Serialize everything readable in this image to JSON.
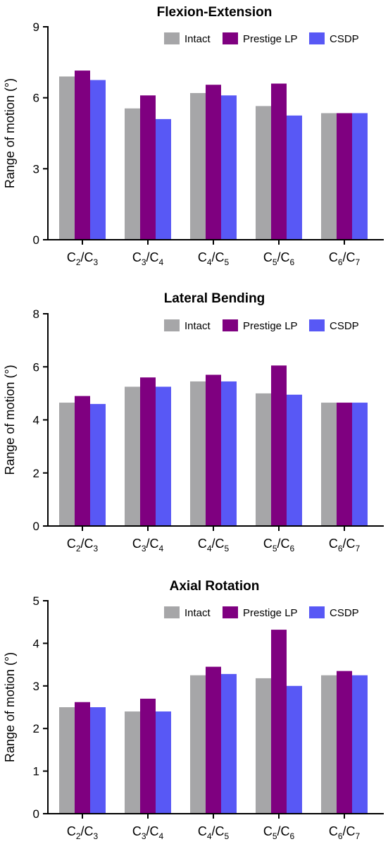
{
  "chart_data": [
    {
      "type": "bar",
      "title": "Flexion-Extension",
      "ylabel": "Range of motion (°)",
      "xlabel": "",
      "ylim": [
        0,
        9
      ],
      "yticks": [
        0,
        3,
        6,
        9
      ],
      "legend_position": "top-right",
      "categories": [
        {
          "base": "C",
          "sub1": "2",
          "sep": "/C",
          "sub2": "3"
        },
        {
          "base": "C",
          "sub1": "3",
          "sep": "/C",
          "sub2": "4"
        },
        {
          "base": "C",
          "sub1": "4",
          "sep": "/C",
          "sub2": "5"
        },
        {
          "base": "C",
          "sub1": "5",
          "sep": "/C",
          "sub2": "6"
        },
        {
          "base": "C",
          "sub1": "6",
          "sep": "/C",
          "sub2": "7"
        }
      ],
      "series": [
        {
          "name": "Intact",
          "color": "#a6a6a8",
          "values": [
            6.9,
            5.55,
            6.2,
            5.65,
            5.35
          ]
        },
        {
          "name": "Prestige LP",
          "color": "#7f0080",
          "values": [
            7.15,
            6.1,
            6.55,
            6.6,
            5.35
          ]
        },
        {
          "name": "CSDP",
          "color": "#5858f5",
          "values": [
            6.75,
            5.1,
            6.1,
            5.25,
            5.35
          ]
        }
      ]
    },
    {
      "type": "bar",
      "title": "Lateral Bending",
      "ylabel": "Range of motion (°)",
      "xlabel": "",
      "ylim": [
        0,
        8
      ],
      "yticks": [
        0,
        2,
        4,
        6,
        8
      ],
      "legend_position": "top-right",
      "categories": [
        {
          "base": "C",
          "sub1": "2",
          "sep": "/C",
          "sub2": "3"
        },
        {
          "base": "C",
          "sub1": "3",
          "sep": "/C",
          "sub2": "4"
        },
        {
          "base": "C",
          "sub1": "4",
          "sep": "/C",
          "sub2": "5"
        },
        {
          "base": "C",
          "sub1": "5",
          "sep": "/C",
          "sub2": "6"
        },
        {
          "base": "C",
          "sub1": "6",
          "sep": "/C",
          "sub2": "7"
        }
      ],
      "series": [
        {
          "name": "Intact",
          "color": "#a6a6a8",
          "values": [
            4.65,
            5.25,
            5.45,
            5.0,
            4.65
          ]
        },
        {
          "name": "Prestige LP",
          "color": "#7f0080",
          "values": [
            4.9,
            5.6,
            5.7,
            6.05,
            4.65
          ]
        },
        {
          "name": "CSDP",
          "color": "#5858f5",
          "values": [
            4.6,
            5.25,
            5.45,
            4.95,
            4.65
          ]
        }
      ]
    },
    {
      "type": "bar",
      "title": "Axial Rotation",
      "ylabel": "Range of motion (°)",
      "xlabel": "",
      "ylim": [
        0,
        5
      ],
      "yticks": [
        0,
        1,
        2,
        3,
        4,
        5
      ],
      "legend_position": "top-right",
      "categories": [
        {
          "base": "C",
          "sub1": "2",
          "sep": "/C",
          "sub2": "3"
        },
        {
          "base": "C",
          "sub1": "3",
          "sep": "/C",
          "sub2": "4"
        },
        {
          "base": "C",
          "sub1": "4",
          "sep": "/C",
          "sub2": "5"
        },
        {
          "base": "C",
          "sub1": "5",
          "sep": "/C",
          "sub2": "6"
        },
        {
          "base": "C",
          "sub1": "6",
          "sep": "/C",
          "sub2": "7"
        }
      ],
      "series": [
        {
          "name": "Intact",
          "color": "#a6a6a8",
          "values": [
            2.5,
            2.4,
            3.25,
            3.18,
            3.25
          ]
        },
        {
          "name": "Prestige LP",
          "color": "#7f0080",
          "values": [
            2.62,
            2.7,
            3.45,
            4.32,
            3.35
          ]
        },
        {
          "name": "CSDP",
          "color": "#5858f5",
          "values": [
            2.5,
            2.4,
            3.28,
            3.0,
            3.25
          ]
        }
      ]
    }
  ]
}
